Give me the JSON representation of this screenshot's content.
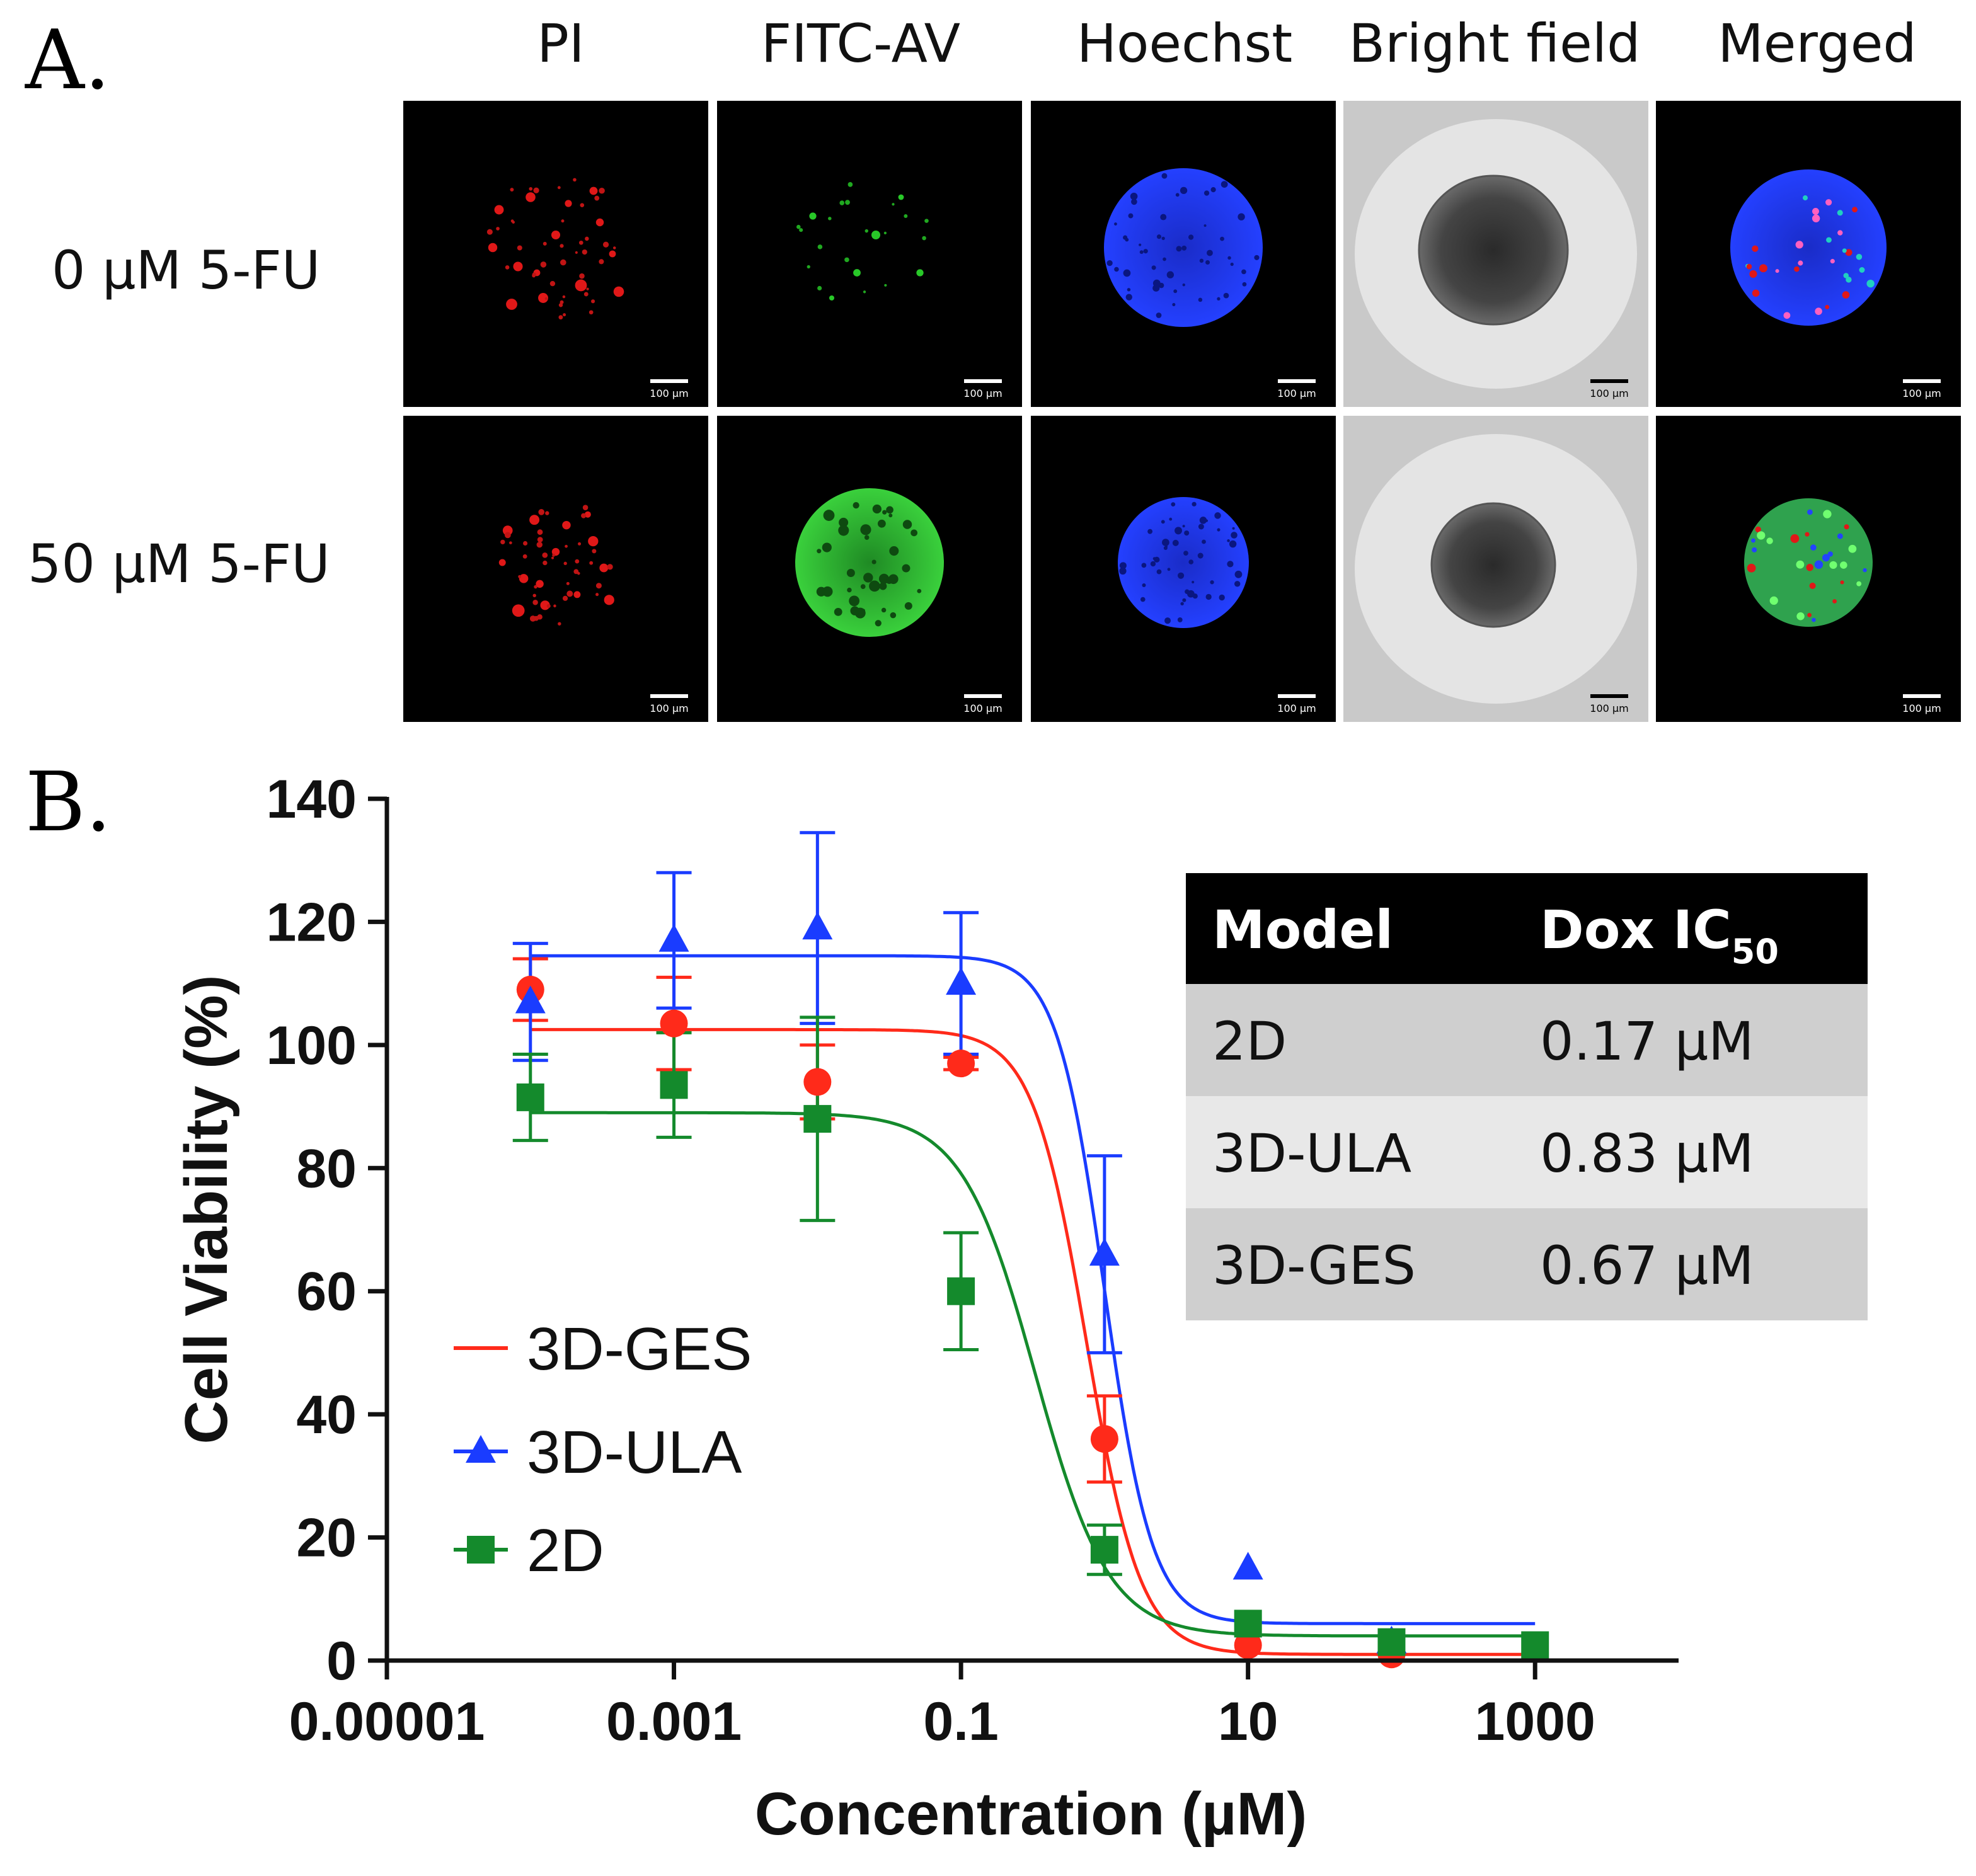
{
  "panel_a": {
    "label": "A.",
    "columns": [
      "PI",
      "FITC-AV",
      "Hoechst",
      "Bright field",
      "Merged"
    ],
    "rows": [
      "0 µM 5-FU",
      "50 µM 5-FU"
    ],
    "scale_bar": "100 µm"
  },
  "panel_b": {
    "label": "B.",
    "table": {
      "header": [
        "Model",
        "Dox IC",
        "50"
      ],
      "rows": [
        [
          "2D",
          "0.17 µM"
        ],
        [
          "3D-ULA",
          "0.83 µM"
        ],
        [
          "3D-GES",
          "0.67 µM"
        ]
      ]
    }
  },
  "chart_data": {
    "type": "scatter",
    "xlabel": "Concentration (µM)",
    "ylabel": "Cell Viability (%)",
    "x_scale": "log",
    "xlim": [
      1e-05,
      10000
    ],
    "ylim": [
      0,
      140
    ],
    "x_ticks": [
      1e-05,
      0.001,
      0.1,
      10,
      1000
    ],
    "x_tick_labels": [
      "0.00001",
      "0.001",
      "0.1",
      "10",
      "1000"
    ],
    "y_ticks": [
      0,
      20,
      40,
      60,
      80,
      100,
      120,
      140
    ],
    "y_tick_labels": [
      "0",
      "20",
      "40",
      "60",
      "80",
      "100",
      "120",
      "140"
    ],
    "legend_position": "lower-left",
    "series": [
      {
        "name": "3D-GES",
        "color": "#ff2a1a",
        "marker": "circle",
        "x": [
          0.0001,
          0.001,
          0.01,
          0.1,
          1,
          10,
          100
        ],
        "y": [
          109,
          103.5,
          94,
          97,
          36,
          2.5,
          1
        ],
        "err": [
          5,
          7.5,
          6,
          1,
          7,
          0,
          0
        ],
        "fit": {
          "top": 102.5,
          "bottom": 1.0,
          "ic50": 0.75,
          "hill": 2.3
        }
      },
      {
        "name": "3D-ULA",
        "color": "#1a3cff",
        "marker": "triangle",
        "x": [
          0.0001,
          0.001,
          0.01,
          0.1,
          1,
          10,
          100
        ],
        "y": [
          107,
          117,
          119,
          110,
          66,
          15,
          3
        ],
        "err": [
          9.5,
          11,
          15.5,
          11.5,
          16,
          0,
          0
        ],
        "fit": {
          "top": 114.5,
          "bottom": 6.0,
          "ic50": 1.0,
          "hill": 2.6
        }
      },
      {
        "name": "2D",
        "color": "#148a2c",
        "marker": "square",
        "x": [
          0.0001,
          0.001,
          0.01,
          0.1,
          1,
          10,
          100,
          1000
        ],
        "y": [
          91.5,
          93.5,
          88,
          60,
          18,
          6,
          3,
          2.5
        ],
        "err": [
          7,
          8.5,
          16.5,
          9.5,
          4,
          0,
          0,
          0
        ],
        "fit": {
          "top": 89,
          "bottom": 4.0,
          "ic50": 0.33,
          "hill": 1.7
        }
      }
    ]
  }
}
